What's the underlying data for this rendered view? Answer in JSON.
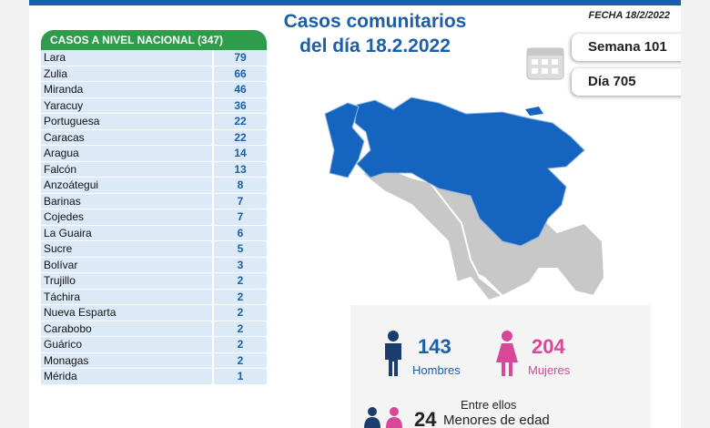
{
  "header": {
    "title": "Casos comunitarios",
    "subtitle": "del día 18.2.2022",
    "date": "FECHA 18/2/2022",
    "week": "Semana 101",
    "day": "Día 705"
  },
  "table": {
    "title": "CASOS A NIVEL NACIONAL",
    "total": "(347)",
    "rows": [
      [
        "Lara",
        79
      ],
      [
        "Zulia",
        66
      ],
      [
        "Miranda",
        46
      ],
      [
        "Yaracuy",
        36
      ],
      [
        "Portuguesa",
        22
      ],
      [
        "Caracas",
        22
      ],
      [
        "Aragua",
        14
      ],
      [
        "Falcón",
        13
      ],
      [
        "Anzoátegui",
        8
      ],
      [
        "Barinas",
        7
      ],
      [
        "Cojedes",
        7
      ],
      [
        "La Guaira",
        6
      ],
      [
        "Sucre",
        5
      ],
      [
        "Bolívar",
        3
      ],
      [
        "Trujillo",
        2
      ],
      [
        "Táchira",
        2
      ],
      [
        "Nueva Esparta",
        2
      ],
      [
        "Carabobo",
        2
      ],
      [
        "Guárico",
        2
      ],
      [
        "Monagas",
        2
      ],
      [
        "Mérida",
        1
      ]
    ]
  },
  "gender": {
    "men": {
      "value": 143,
      "label": "Hombres"
    },
    "women": {
      "value": 204,
      "label": "Mujeres"
    }
  },
  "minors": {
    "intro": "Entre ellos",
    "value": 24,
    "label": "Menores de edad"
  }
}
